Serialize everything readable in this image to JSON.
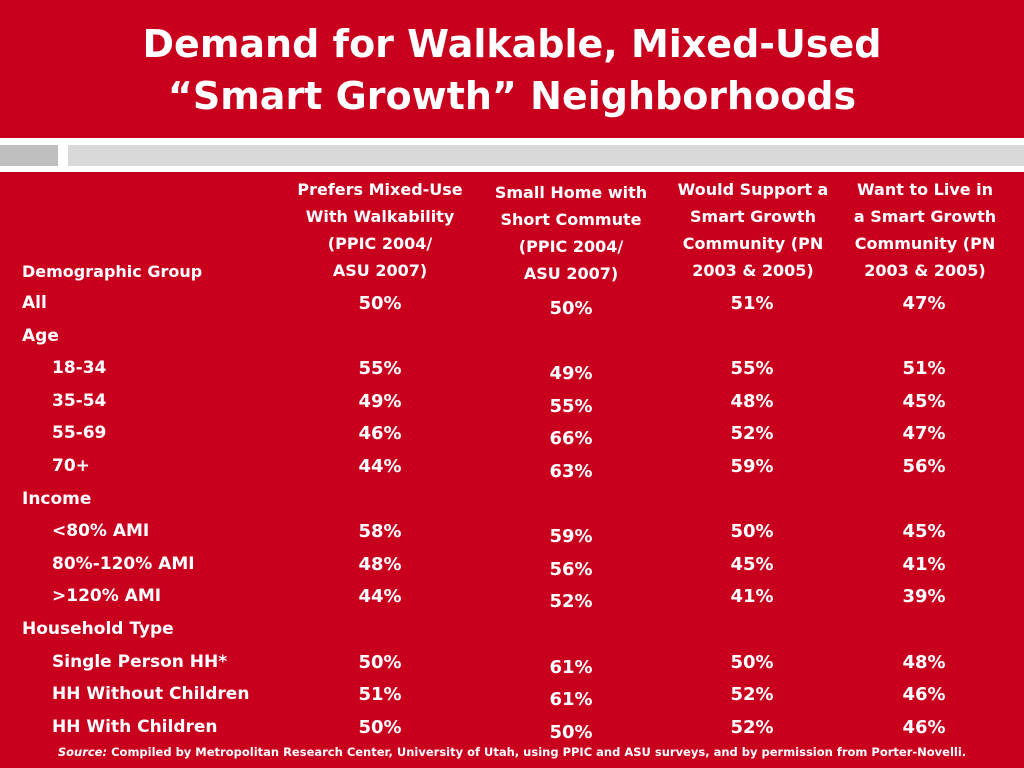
{
  "title": {
    "line1": "Demand for Walkable, Mixed-Used",
    "line2": "“Smart Growth” Neighborhoods"
  },
  "table": {
    "group_header": "Demographic Group",
    "columns": [
      [
        "Prefers Mixed-Use",
        "With Walkability",
        "(PPIC 2004/",
        "ASU 2007)"
      ],
      [
        "Small Home  with",
        "Short Commute",
        "(PPIC 2004/",
        "ASU 2007)"
      ],
      [
        "Would Support a",
        "Smart Growth",
        "Community (PN",
        "2003 & 2005)"
      ],
      [
        "Want to Live in",
        "a Smart Growth",
        "Community (PN",
        "2003 & 2005)"
      ]
    ],
    "rows": [
      {
        "label": "All",
        "level": "cat",
        "values": [
          "50%",
          "50%",
          "51%",
          "47%"
        ]
      },
      {
        "label": "Age",
        "level": "cat",
        "values": []
      },
      {
        "label": "18-34",
        "level": "sub",
        "values": [
          "55%",
          "49%",
          "55%",
          "51%"
        ]
      },
      {
        "label": "35-54",
        "level": "sub",
        "values": [
          "49%",
          "55%",
          "48%",
          "45%"
        ]
      },
      {
        "label": "55-69",
        "level": "sub",
        "values": [
          "46%",
          "66%",
          "52%",
          "47%"
        ]
      },
      {
        "label": "70+",
        "level": "sub",
        "values": [
          "44%",
          "63%",
          "59%",
          "56%"
        ]
      },
      {
        "label": "Income",
        "level": "cat",
        "values": []
      },
      {
        "label": "<80% AMI",
        "level": "sub",
        "values": [
          "58%",
          "59%",
          "50%",
          "45%"
        ]
      },
      {
        "label": "80%-120% AMI",
        "level": "sub",
        "values": [
          "48%",
          "56%",
          "45%",
          "41%"
        ]
      },
      {
        "label": ">120% AMI",
        "level": "sub",
        "values": [
          "44%",
          "52%",
          "41%",
          "39%"
        ]
      },
      {
        "label": "Household Type",
        "level": "cat",
        "values": []
      },
      {
        "label": "Single Person HH*",
        "level": "sub",
        "values": [
          "50%",
          "61%",
          "50%",
          "48%"
        ]
      },
      {
        "label": "HH Without Children",
        "level": "sub",
        "values": [
          "51%",
          "61%",
          "52%",
          "46%"
        ]
      },
      {
        "label": "HH With Children",
        "level": "sub",
        "values": [
          "50%",
          "50%",
          "52%",
          "46%"
        ]
      }
    ]
  },
  "source": {
    "label": "Source:",
    "text": " Compiled by Metropolitan Research Center, University of Utah, using PPIC and ASU surveys, and by permission from Porter-Novelli."
  },
  "colors": {
    "background": "#c8001e",
    "text": "#ffffff",
    "bar_white": "#ffffff",
    "bar_gray_light": "#d9d9d9",
    "bar_gray_dark": "#bfbfbf"
  }
}
